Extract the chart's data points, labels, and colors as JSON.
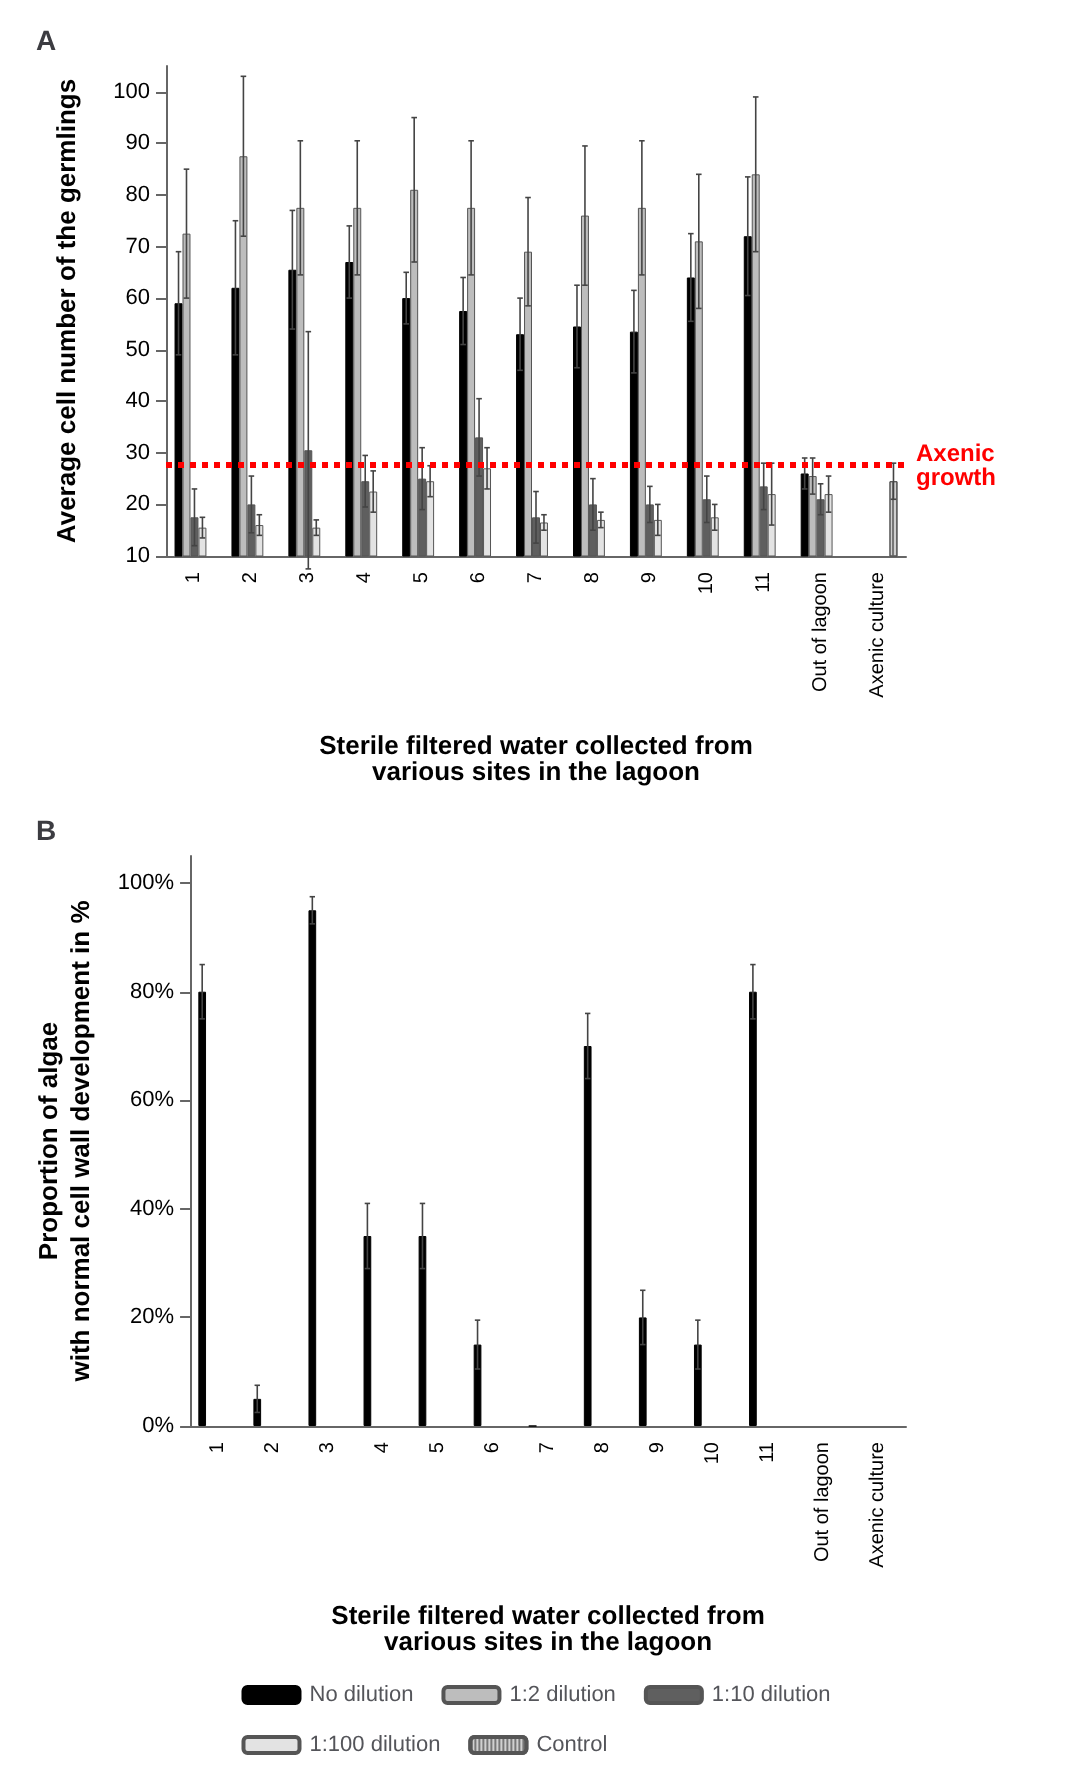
{
  "chart_data": [
    {
      "type": "bar",
      "title": "A",
      "xlabel": "Sterile filtered water collected from\nvarious sites in the lagoon",
      "ylabel": "Average cell number of the germlings",
      "categories": [
        "1",
        "2",
        "3",
        "4",
        "5",
        "6",
        "7",
        "8",
        "9",
        "10",
        "11",
        "Out of lagoon",
        "Axenic culture"
      ],
      "series": [
        {
          "color": "#000000",
          "values": [
            59,
            62,
            65.5,
            67,
            60,
            57.5,
            53,
            54.5,
            53.5,
            64,
            72,
            26,
            null
          ],
          "errors": [
            10,
            13,
            11.5,
            7,
            5,
            6.5,
            7,
            8,
            8,
            8.5,
            11.5,
            3,
            null
          ]
        },
        {
          "color": "#bdbdbd",
          "values": [
            72.5,
            87.5,
            77.5,
            77.5,
            81,
            77.5,
            69,
            76,
            77.5,
            71,
            84,
            25.5,
            null
          ],
          "errors": [
            12.5,
            15.5,
            13,
            13,
            14,
            13,
            10.5,
            13.5,
            13,
            13,
            15,
            3.5,
            null
          ]
        },
        {
          "color": "#5f5f5f",
          "values": [
            17.5,
            20,
            30.5,
            24.5,
            25,
            33,
            17.5,
            20,
            20,
            21,
            23.5,
            21,
            null
          ],
          "errors": [
            5.5,
            5.5,
            23,
            5,
            6,
            7.5,
            5,
            5,
            3.5,
            4.5,
            4.5,
            3,
            null
          ]
        },
        {
          "color": "#e3e3e3",
          "values": [
            15.5,
            16,
            15.5,
            22.5,
            24.5,
            27,
            16.5,
            17,
            17,
            17.5,
            22,
            22,
            null
          ],
          "errors": [
            2,
            2,
            1.5,
            4,
            3,
            4,
            1.5,
            1.5,
            3,
            2.5,
            6,
            3.5,
            null
          ]
        },
        {
          "color": "#d0d0d0",
          "values": [
            null,
            null,
            null,
            null,
            null,
            null,
            null,
            null,
            null,
            null,
            null,
            null,
            24.5
          ],
          "errors": [
            null,
            null,
            null,
            null,
            null,
            null,
            null,
            null,
            null,
            null,
            null,
            null,
            3.5
          ]
        }
      ],
      "ylim": [
        10,
        105
      ],
      "yticks": [
        10,
        20,
        30,
        40,
        50,
        60,
        70,
        80,
        90,
        100
      ],
      "grid": false,
      "legend": false,
      "ref_lines": [
        {
          "axis": "y",
          "value": 27.7,
          "label": "Axenic growth",
          "color": "#ff0000",
          "line_style": "dotted"
        }
      ]
    },
    {
      "type": "bar",
      "title": "B",
      "xlabel": "Sterile filtered water collected from\nvarious sites in the lagoon",
      "ylabel": "Proportion of algae\nwith normal cell wall development in %",
      "categories": [
        "1",
        "2",
        "3",
        "4",
        "5",
        "6",
        "7",
        "8",
        "9",
        "10",
        "11",
        "Out of lagoon",
        "Axenic culture"
      ],
      "series": [
        {
          "name": "No dilution",
          "color": "#000000",
          "values": [
            80,
            5,
            95,
            35,
            35,
            15,
            0,
            70,
            20,
            15,
            80,
            null,
            null
          ],
          "errors": [
            5,
            2.5,
            2.5,
            6,
            6,
            4.5,
            null,
            6,
            5,
            4.5,
            5,
            null,
            null
          ]
        },
        {
          "name": "1:2 dilution",
          "color": "#bdbdbd",
          "values": [
            null,
            null,
            null,
            null,
            null,
            null,
            null,
            null,
            null,
            null,
            null,
            null,
            null
          ]
        },
        {
          "name": "1:10 dilution",
          "color": "#5f5f5f",
          "values": [
            null,
            null,
            null,
            null,
            null,
            null,
            null,
            null,
            null,
            null,
            null,
            null,
            null
          ]
        },
        {
          "name": "1:100 dilution",
          "color": "#e3e3e3",
          "values": [
            null,
            null,
            null,
            null,
            null,
            null,
            null,
            null,
            null,
            null,
            null,
            null,
            null
          ]
        },
        {
          "name": "Control",
          "color": "#d0d0d0",
          "values": [
            null,
            null,
            null,
            null,
            null,
            null,
            null,
            null,
            null,
            null,
            null,
            null,
            null
          ]
        }
      ],
      "ylim": [
        0,
        105
      ],
      "yticks": [
        {
          "value": 0,
          "label": "0%"
        },
        {
          "value": 20,
          "label": "20%"
        },
        {
          "value": 40,
          "label": "40%"
        },
        {
          "value": 60,
          "label": "60%"
        },
        {
          "value": 80,
          "label": "80%"
        },
        {
          "value": 100,
          "label": "100%"
        }
      ],
      "grid": false,
      "legend": "bottom"
    }
  ]
}
